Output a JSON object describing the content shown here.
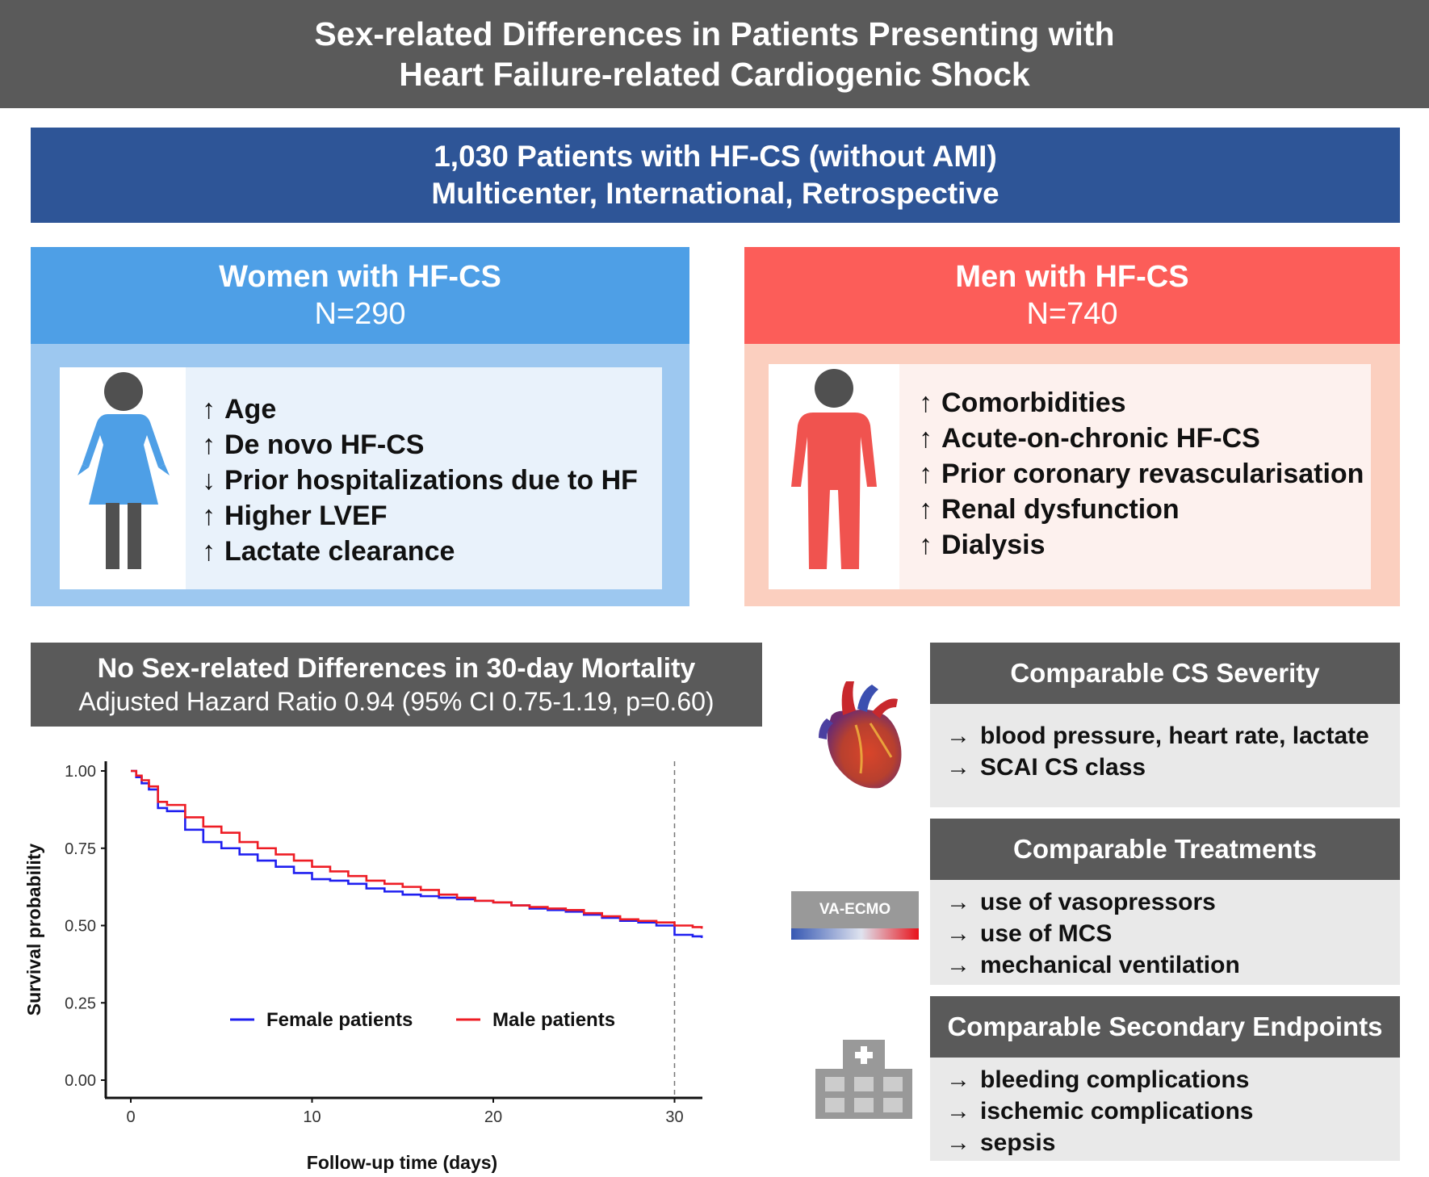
{
  "title": {
    "line1": "Sex-related Differences in Patients Presenting with",
    "line2": "Heart Failure-related Cardiogenic Shock"
  },
  "study": {
    "line1": "1,030 Patients with HF-CS (without AMI)",
    "line2": "Multicenter, International, Retrospective"
  },
  "women": {
    "title": "Women with HF-CS",
    "n": "N=290",
    "color": "#4e9fe6",
    "items": [
      {
        "arrow": "↑",
        "text": "Age"
      },
      {
        "arrow": "↑",
        "text": "De novo HF-CS"
      },
      {
        "arrow": "↓",
        "text": "Prior hospitalizations due to HF"
      },
      {
        "arrow": "↑",
        "text": "Higher LVEF"
      },
      {
        "arrow": "↑",
        "text": "Lactate clearance"
      }
    ]
  },
  "men": {
    "title": "Men with HF-CS",
    "n": "N=740",
    "color": "#fc5d59",
    "items": [
      {
        "arrow": "↑",
        "text": "Comorbidities"
      },
      {
        "arrow": "↑",
        "text": "Acute-on-chronic HF-CS"
      },
      {
        "arrow": "↑",
        "text": "Prior coronary revascularisation"
      },
      {
        "arrow": "↑",
        "text": "Renal dysfunction"
      },
      {
        "arrow": "↑",
        "text": "Dialysis"
      }
    ]
  },
  "mortality": {
    "title": "No Sex-related Differences in 30-day Mortality",
    "subtitle": "Adjusted Hazard Ratio 0.94 (95% CI 0.75-1.19, p=0.60)"
  },
  "chart_data": {
    "type": "line",
    "xlabel": "Follow-up time (days)",
    "ylabel": "Survival probability",
    "xlim": [
      0,
      31.5
    ],
    "ylim": [
      0,
      1.0
    ],
    "x_ticks": [
      "0",
      "10",
      "20",
      "30"
    ],
    "y_ticks": [
      "0.00",
      "0.25",
      "0.50",
      "0.75",
      "1.00"
    ],
    "reference_line_x": 30,
    "legend_position": "inside-bottom",
    "series": [
      {
        "name": "Female patients",
        "color": "#1f1ff0",
        "x": [
          0,
          0.3,
          0.6,
          1,
          1.5,
          2,
          3,
          4,
          5,
          6,
          7,
          8,
          9,
          10,
          11,
          12,
          13,
          14,
          15,
          16,
          17,
          18,
          19,
          20,
          21,
          22,
          23,
          24,
          25,
          26,
          27,
          28,
          29,
          30,
          31,
          31.5
        ],
        "y": [
          1.0,
          0.98,
          0.96,
          0.94,
          0.88,
          0.87,
          0.81,
          0.77,
          0.75,
          0.73,
          0.71,
          0.69,
          0.67,
          0.65,
          0.645,
          0.635,
          0.62,
          0.61,
          0.6,
          0.595,
          0.59,
          0.585,
          0.58,
          0.575,
          0.565,
          0.555,
          0.55,
          0.545,
          0.535,
          0.525,
          0.515,
          0.51,
          0.5,
          0.47,
          0.465,
          0.46
        ]
      },
      {
        "name": "Male patients",
        "color": "#ee1c24",
        "x": [
          0,
          0.3,
          0.6,
          1,
          1.5,
          2,
          3,
          4,
          5,
          6,
          7,
          8,
          9,
          10,
          11,
          12,
          13,
          14,
          15,
          16,
          17,
          18,
          19,
          20,
          21,
          22,
          23,
          24,
          25,
          26,
          27,
          28,
          29,
          30,
          31,
          31.5
        ],
        "y": [
          1.0,
          0.985,
          0.97,
          0.95,
          0.9,
          0.89,
          0.85,
          0.82,
          0.8,
          0.77,
          0.75,
          0.73,
          0.71,
          0.69,
          0.675,
          0.66,
          0.645,
          0.635,
          0.625,
          0.615,
          0.6,
          0.59,
          0.58,
          0.575,
          0.565,
          0.56,
          0.555,
          0.55,
          0.54,
          0.53,
          0.52,
          0.515,
          0.51,
          0.5,
          0.495,
          0.49
        ]
      }
    ]
  },
  "severity": {
    "title": "Comparable CS Severity",
    "items": [
      {
        "arrow": "→",
        "text": "blood pressure, heart rate, lactate"
      },
      {
        "arrow": "→",
        "text": "SCAI CS class"
      }
    ]
  },
  "treatments": {
    "title": "Comparable Treatments",
    "items": [
      {
        "arrow": "→",
        "text": "use of vasopressors"
      },
      {
        "arrow": "→",
        "text": "use of MCS"
      },
      {
        "arrow": "→",
        "text": "mechanical ventilation"
      }
    ]
  },
  "secondary": {
    "title": "Comparable Secondary Endpoints",
    "items": [
      {
        "arrow": "→",
        "text": "bleeding complications"
      },
      {
        "arrow": "→",
        "text": "ischemic complications"
      },
      {
        "arrow": "→",
        "text": "sepsis"
      }
    ]
  },
  "ecmo_label": "VA-ECMO",
  "icons": {
    "women": "female-figure-icon",
    "men": "male-figure-icon",
    "heart": "heart-icon",
    "ecmo": "ecmo-device-icon",
    "hospital": "hospital-icon"
  }
}
